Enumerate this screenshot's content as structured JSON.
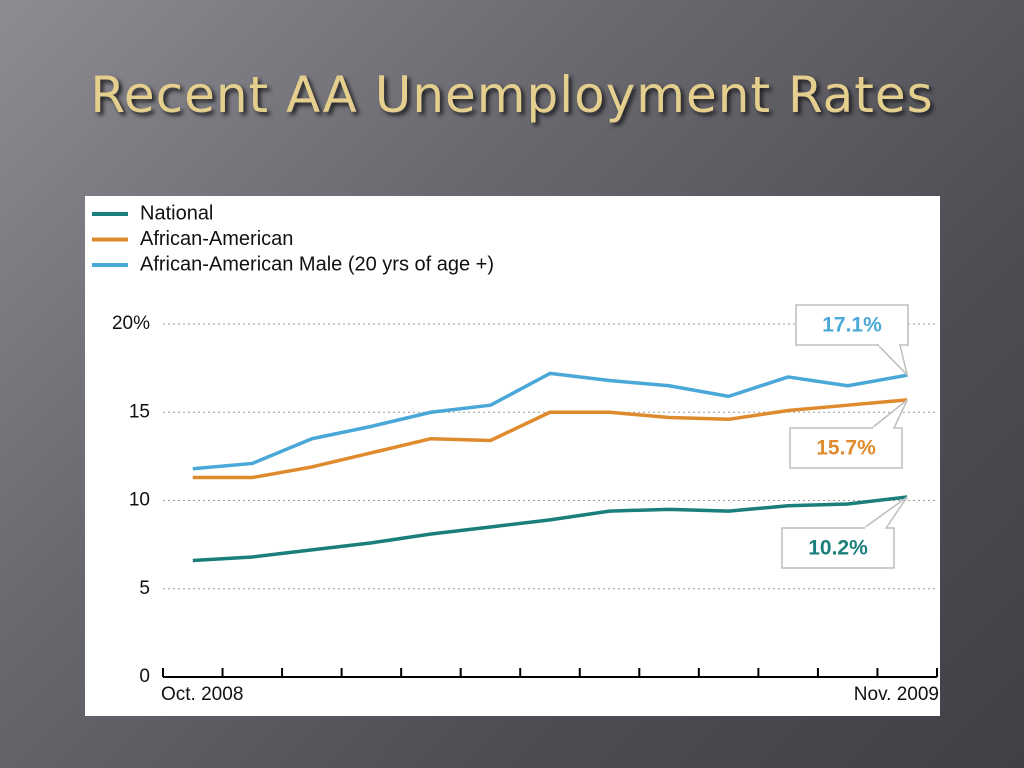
{
  "chart_data": {
    "type": "line",
    "title": "Recent AA Unemployment Rates",
    "categories": [
      "Oct. 2008",
      null,
      null,
      null,
      null,
      null,
      null,
      null,
      null,
      null,
      null,
      null,
      "Nov. 2009"
    ],
    "series": [
      {
        "name": "National",
        "color": "#1a7f7a",
        "values": [
          6.6,
          6.8,
          7.2,
          7.6,
          8.1,
          8.5,
          8.9,
          9.4,
          9.5,
          9.4,
          9.7,
          9.8,
          10.2
        ],
        "value_labels": [
          null,
          null,
          null,
          null,
          null,
          null,
          null,
          null,
          null,
          null,
          null,
          null,
          "10.2%"
        ]
      },
      {
        "name": "African-American",
        "color": "#e08a2e",
        "values": [
          11.3,
          11.3,
          11.9,
          12.7,
          13.5,
          13.4,
          15.0,
          15.0,
          14.7,
          14.6,
          15.1,
          15.4,
          15.7
        ],
        "value_labels": [
          null,
          null,
          null,
          null,
          null,
          null,
          null,
          null,
          null,
          null,
          null,
          null,
          "15.7%"
        ]
      },
      {
        "name": "African-American Male (20 yrs of age +)",
        "color": "#4aa8d8",
        "values": [
          11.8,
          12.1,
          13.5,
          14.2,
          15.0,
          15.4,
          17.2,
          16.8,
          16.5,
          15.9,
          17.0,
          16.5,
          17.1
        ],
        "value_labels": [
          null,
          null,
          null,
          null,
          null,
          null,
          null,
          null,
          null,
          null,
          null,
          null,
          "17.1%"
        ]
      }
    ],
    "ylim": [
      0,
      20
    ],
    "yticks": [
      0,
      5,
      10,
      15,
      {
        "value": 20,
        "label": "20%"
      }
    ],
    "grid": true,
    "legend": "top-left"
  }
}
